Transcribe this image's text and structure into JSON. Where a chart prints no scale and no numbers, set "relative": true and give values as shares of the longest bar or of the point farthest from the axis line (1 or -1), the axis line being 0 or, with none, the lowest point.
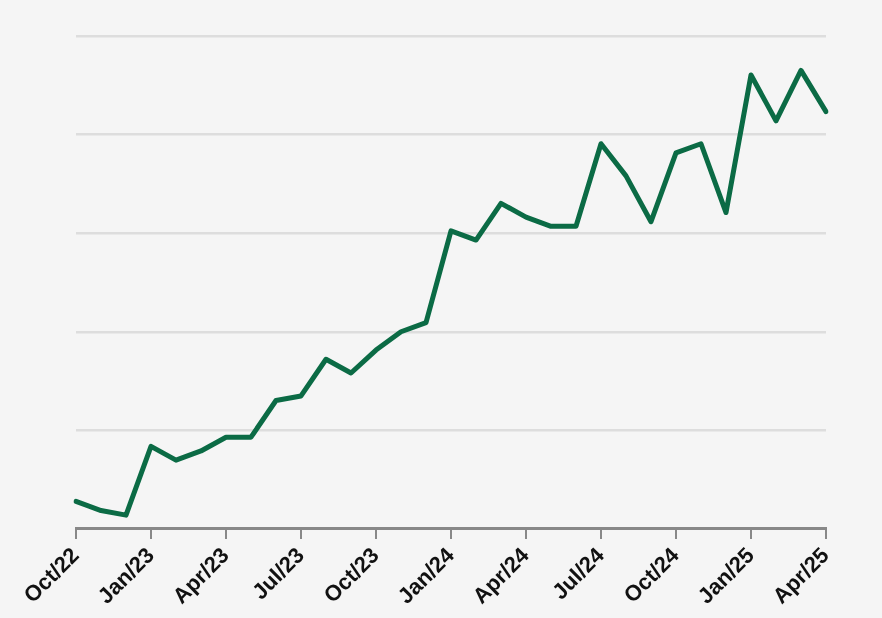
{
  "chart_data": {
    "type": "line",
    "relative": true,
    "grid": "y",
    "legend": false,
    "marker": "none",
    "line_style": "solid",
    "categories": [
      "Oct/22",
      null,
      null,
      "Jan/23",
      null,
      null,
      "Apr/23",
      null,
      null,
      "Jul/23",
      null,
      null,
      "Oct/23",
      null,
      null,
      "Jan/24",
      null,
      null,
      "Apr/24",
      null,
      null,
      "Jul/24",
      null,
      null,
      "Oct/24",
      null,
      null,
      "Jan/25",
      null,
      null,
      "Apr/25"
    ],
    "series": [
      {
        "color": "#0b6b45",
        "values": [
          0.06,
          0.04,
          0.03,
          0.18,
          0.15,
          0.17,
          0.2,
          0.2,
          0.28,
          0.29,
          0.37,
          0.34,
          0.39,
          0.43,
          0.45,
          0.65,
          0.63,
          0.71,
          0.68,
          0.66,
          0.66,
          0.84,
          0.77,
          0.67,
          0.82,
          0.84,
          0.69,
          0.99,
          0.89,
          1,
          0.91
        ]
      }
    ]
  }
}
